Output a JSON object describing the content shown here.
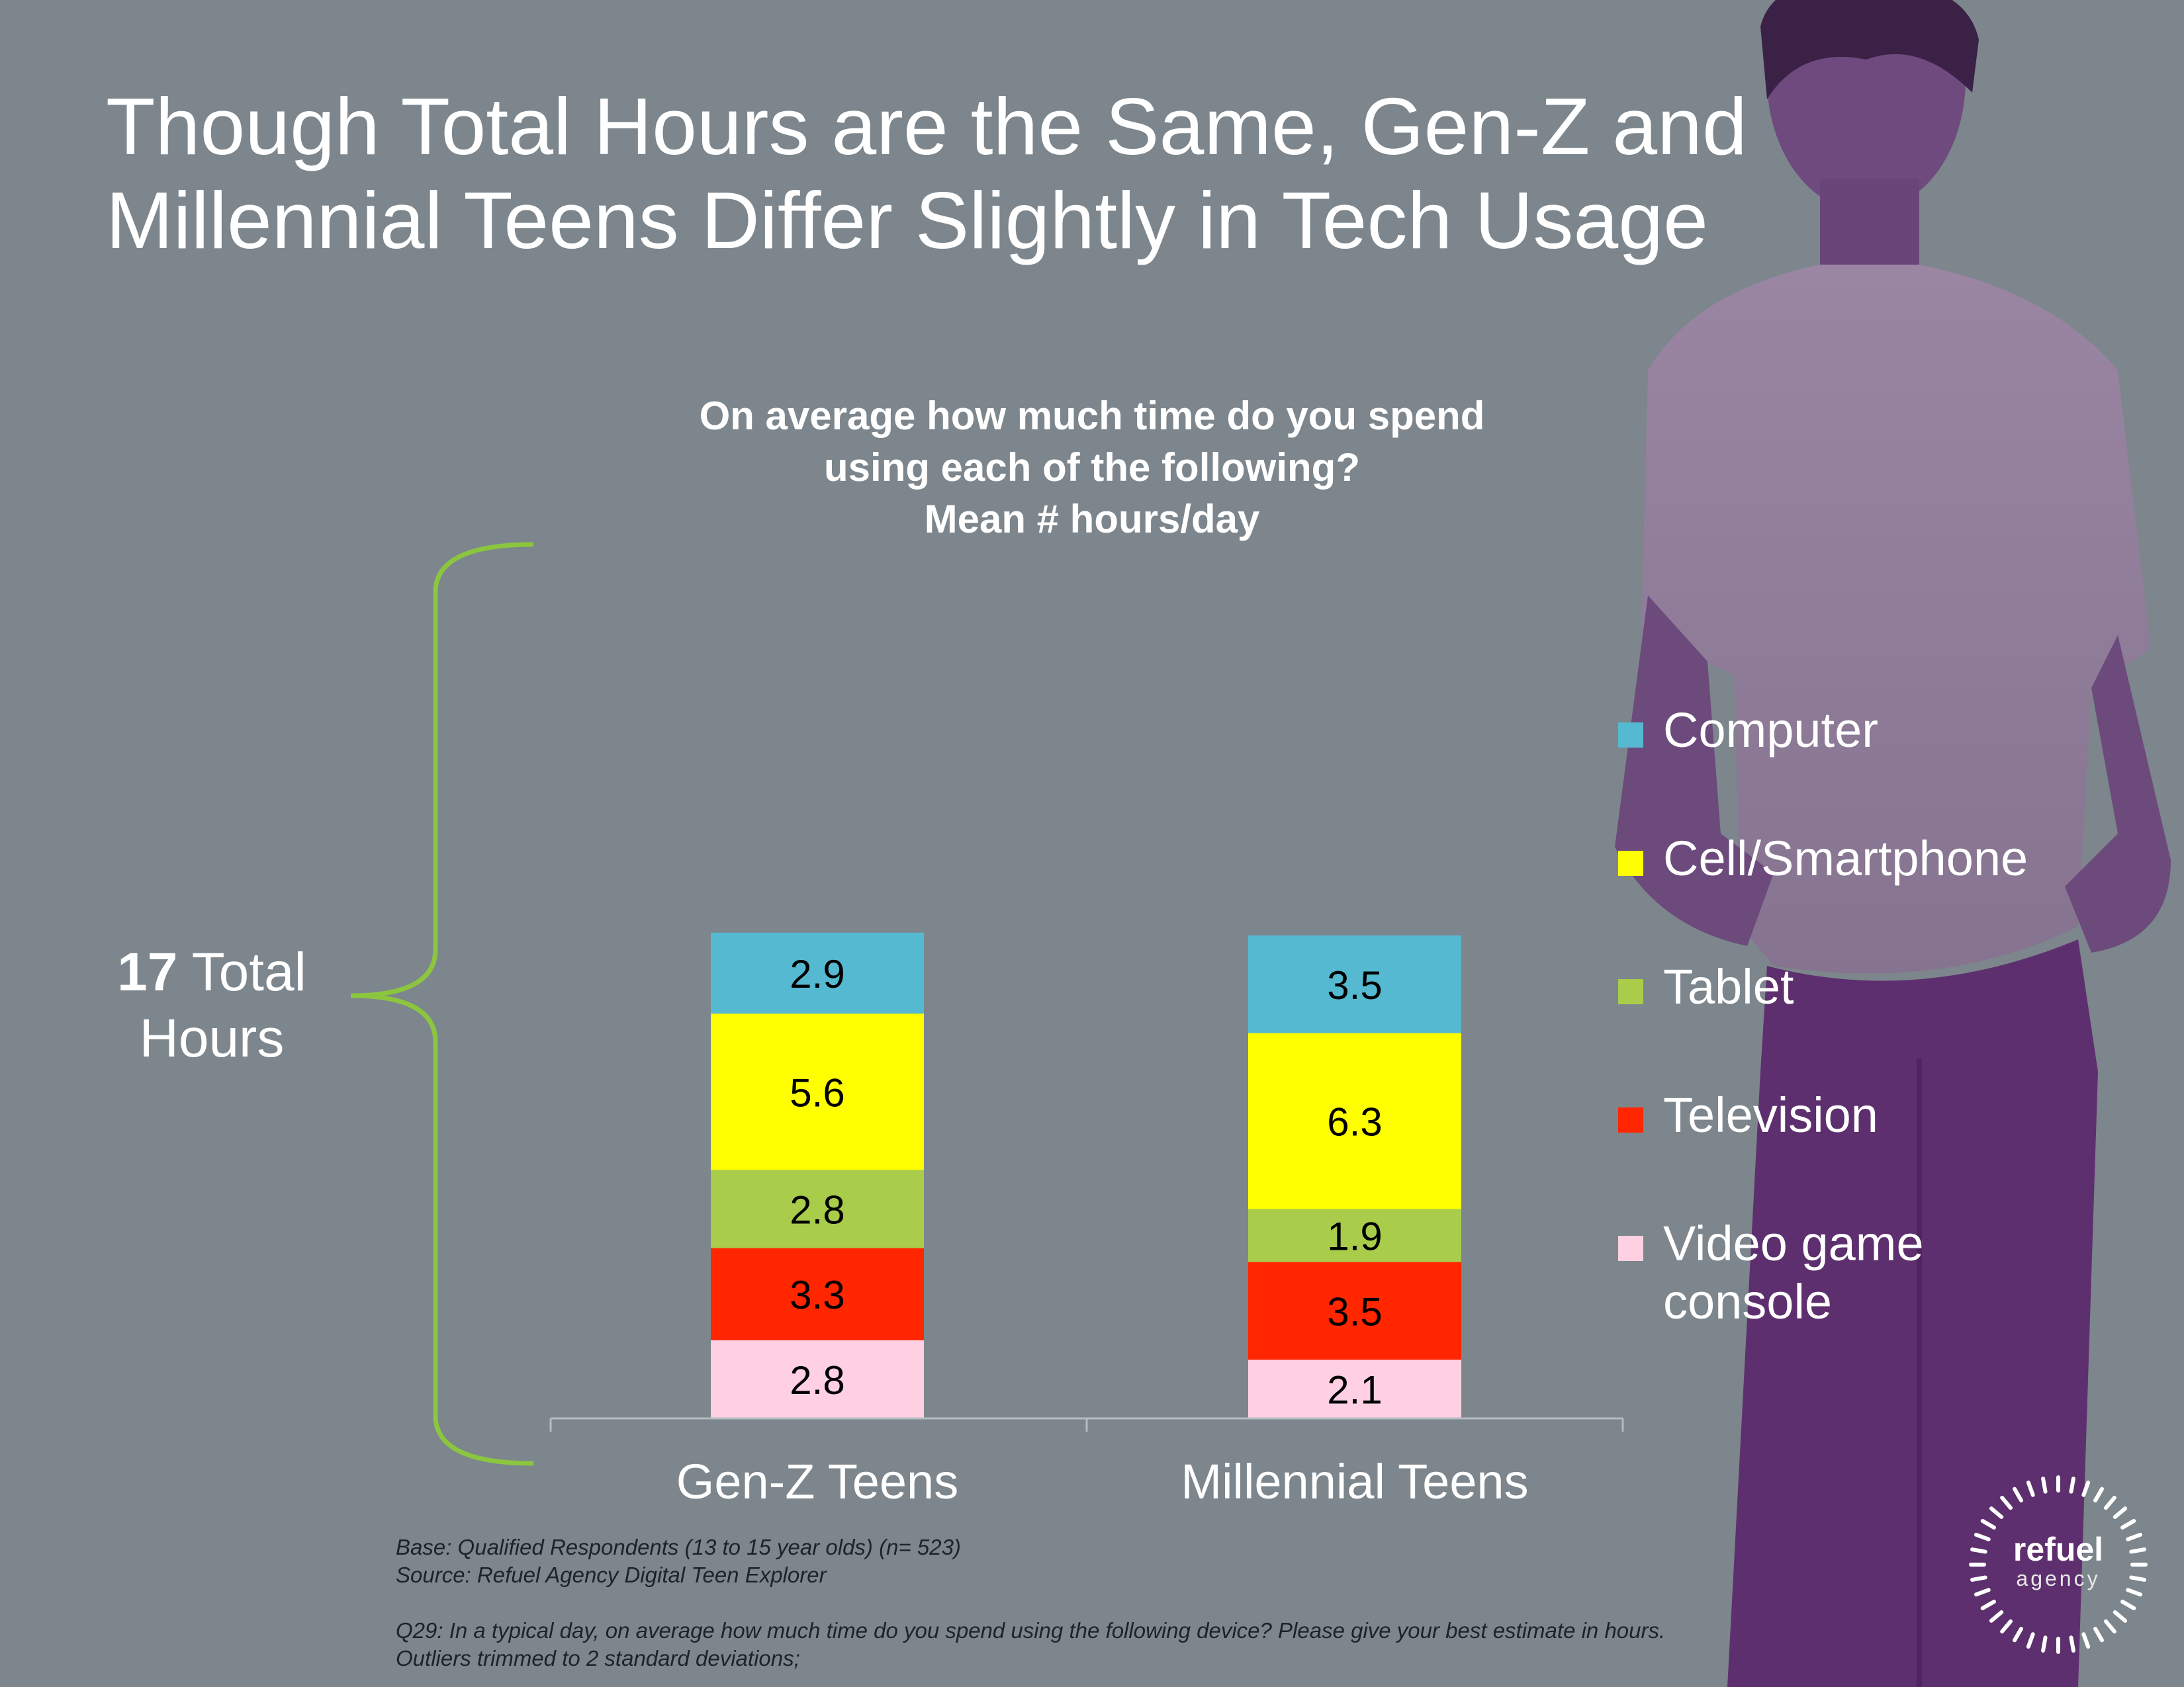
{
  "slide_title": "Though Total Hours are the Same, Gen-Z and Millennial Teens Differ Slightly in Tech Usage",
  "chart_data": {
    "type": "bar",
    "stacked": true,
    "title_lines": [
      "On average how much time do you spend",
      "using each of the following?",
      "Mean # hours/day"
    ],
    "categories": [
      "Gen-Z Teens",
      "Millennial Teens"
    ],
    "series": [
      {
        "name": "Computer",
        "color": "#56b9d2",
        "values": [
          2.9,
          3.5
        ]
      },
      {
        "name": "Cell/Smartphone",
        "color": "#ffff00",
        "values": [
          5.6,
          6.3
        ]
      },
      {
        "name": "Tablet",
        "color": "#a9cc4b",
        "values": [
          2.8,
          1.9
        ]
      },
      {
        "name": "Television",
        "color": "#ff2600",
        "values": [
          3.3,
          3.5
        ]
      },
      {
        "name": "Video game console",
        "color": "#ffd0e2",
        "values": [
          2.8,
          2.1
        ]
      }
    ],
    "stack_order_bottom_to_top": [
      "Video game console",
      "Television",
      "Tablet",
      "Cell/Smartphone",
      "Computer"
    ],
    "legend_position": "right",
    "grid": false
  },
  "total_annotation": {
    "number": "17",
    "text": "Total Hours"
  },
  "footnotes": {
    "base": "Base: Qualified Respondents (13 to 15 year olds)  (n= 523)",
    "source": "Source: Refuel Agency Digital Teen Explorer",
    "question": "Q29: In a typical day, on average how much time do you spend using the following device? Please give your best estimate in hours.",
    "outliers": "Outliers trimmed to 2 standard deviations;"
  },
  "logo": {
    "name": "refuel",
    "sub": "agency"
  },
  "colors": {
    "background": "#7c868c",
    "bracket": "#8cc63f",
    "photo_tint": "#5e2f6e",
    "label_text": "#000000"
  }
}
